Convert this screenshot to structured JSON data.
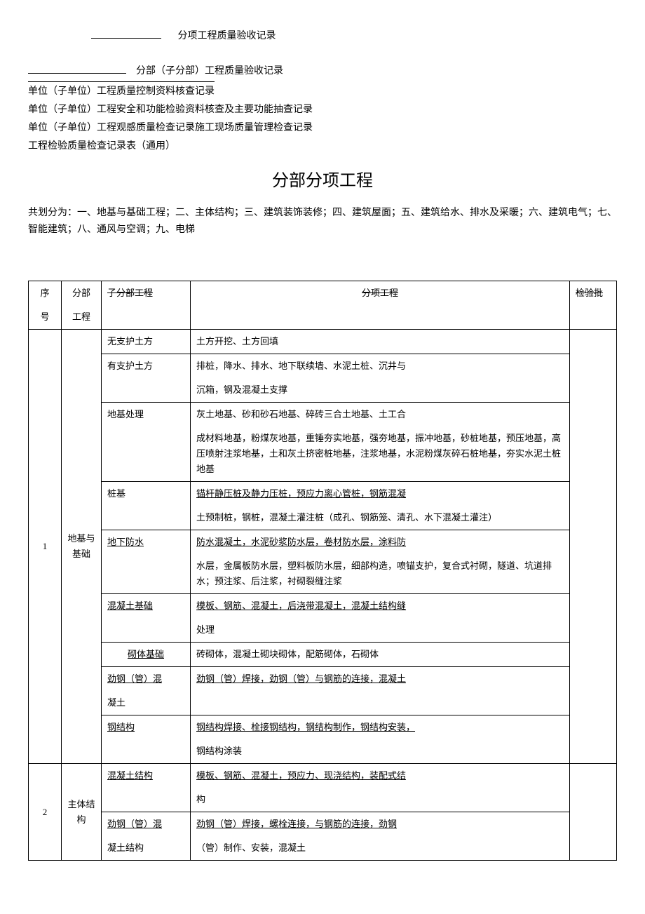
{
  "header": {
    "line1": "分项工程质量验收记录",
    "line2_suffix": "分部（子分部）工程质量验收记录",
    "line3": "单位（子单位）工程质量控制资料核查记录",
    "line4": "单位（子单位）工程安全和功能检验资料核查及主要功能抽查记录",
    "line5": "单位（子单位）工程观感质量检查记录施工现场质量管理检查记录",
    "line6": "工程检验质量检查记录表（通用）"
  },
  "section_title": "分部分项工程",
  "intro": "共划分为：一、地基与基础工程；二、主体结构；三、建筑装饰装修；四、建筑屋面；五、建筑给水、排水及采暖；六、建筑电气；七、智能建筑；八、通风与空调；九、电梯",
  "table": {
    "headers": {
      "seq": "序号",
      "part": "分部工程",
      "sub": "子分部工程",
      "item": "分项工程",
      "check": "检验批"
    },
    "row1": {
      "seq": "1",
      "part": "地基与基础",
      "subs": [
        {
          "sub": "无支护土方",
          "item": "土方开挖、土方回填"
        },
        {
          "sub": "有支护土方",
          "item": "排桩，降水、排水、地下联续墙、水泥土桩、沉井与"
        },
        {
          "sub": "",
          "item": "沉箱，钢及混凝土支撑"
        },
        {
          "sub": "地基处理",
          "item": "灰土地基、砂和砂石地基、碎砖三合土地基、土工合"
        },
        {
          "sub": "",
          "item": "成材料地基，粉煤灰地基，重锤夯实地基，强夯地基，振冲地基，砂桩地基，预压地基，高压喷射注浆地基，土和灰土挤密桩地基，注浆地基，水泥粉煤灰碎石桩地基，夯实水泥土桩地基"
        },
        {
          "sub": "桩基",
          "item": "锚杆静压桩及静力压桩，预应力离心管桩，钢筋混凝"
        },
        {
          "sub": "",
          "item": "土预制桩，钢桩，混凝土灌注桩（成孔、钢筋笼、清孔、水下混凝土灌注）"
        },
        {
          "sub": "地下防水",
          "item": "防水混凝土，水泥砂浆防水层，卷材防水层，涂料防"
        },
        {
          "sub": "",
          "item": "水层，金属板防水层，塑料板防水层，细部构造，喷锚支护，复合式衬砌，隧道、坑道排水；预注浆、后注浆，衬砌裂缝注浆"
        },
        {
          "sub": "混凝土基础",
          "item": "模板、钢筋、混凝土，后浇带混凝土，混凝土结构缝"
        },
        {
          "sub": "",
          "item": "处理"
        },
        {
          "sub": "砌体基础",
          "item": "砖砌体，混凝土砌块砌体，配筋砌体，石砌体"
        },
        {
          "sub": "劲钢（管）混",
          "item": "劲钢（管）焊接，劲钢（管）与钢筋的连接，混凝土"
        },
        {
          "sub": "凝土",
          "item": ""
        },
        {
          "sub": "钢结构",
          "item": "钢结构焊接、栓接钢结构，钢结构制作，钢结构安装，"
        },
        {
          "sub": "",
          "item": "钢结构涂装"
        }
      ]
    },
    "row2": {
      "seq": "2",
      "part": "主体结构",
      "subs": [
        {
          "sub": "混凝土结构",
          "item": "模板、钢筋、混凝土，预应力、现浇结构，装配式结"
        },
        {
          "sub": "",
          "item": "构"
        },
        {
          "sub": "劲钢（管）混",
          "item": "劲钢（管）焊接，螺栓连接，与钢筋的连接，劲钢"
        },
        {
          "sub": "凝土结构",
          "item": "（管）制作、安装，混凝土"
        }
      ]
    }
  }
}
